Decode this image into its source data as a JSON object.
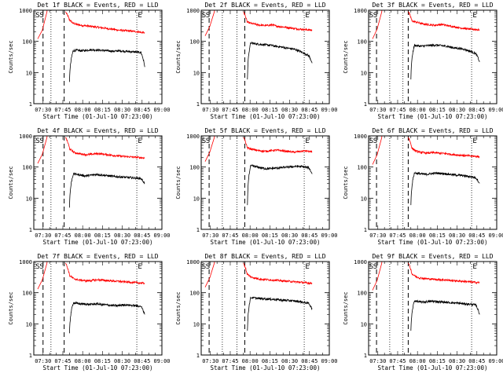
{
  "chart_data": {
    "type": "line",
    "figure_layout": "3x3 grid of detector panels",
    "y_scale": "log",
    "ylim": [
      1,
      1000
    ],
    "xlim": [
      "07:23:00",
      "09:00:00"
    ],
    "xlim_minutes": [
      0,
      97
    ],
    "x_tick_labels": [
      "07:30",
      "07:45",
      "08:00",
      "08:15",
      "08:30",
      "08:45",
      "09:00"
    ],
    "x_tick_minutes": [
      7,
      22,
      37,
      52,
      67,
      82,
      97
    ],
    "y_tick_labels": [
      "1",
      "10",
      "100",
      "1000"
    ],
    "y_tick_values": [
      1,
      10,
      100,
      1000
    ],
    "xlabel": "Start Time (01-Jul-10 07:23:00)",
    "ylabel": "Counts/sec",
    "series_legend": {
      "events_color": "#000000",
      "lld_color": "#ff0000"
    },
    "marker_symbols": {
      "start": "S",
      "end": "E"
    },
    "panels": [
      {
        "title": "Det 1f BLACK = Events, RED = LLD",
        "lld": {
          "t_start": 3,
          "t_end": 10,
          "pre": [
            120,
            230,
            900
          ],
          "rise_at": 24,
          "values": [
            900,
            500,
            380,
            350,
            330,
            320,
            310,
            300,
            290,
            280,
            270,
            260,
            250,
            240,
            230,
            225,
            220,
            215,
            210,
            205,
            195,
            190
          ]
        },
        "events": {
          "t_start": 27,
          "t_end": 84,
          "values": [
            5,
            50,
            52,
            50,
            51,
            53,
            54,
            53,
            52,
            51,
            50,
            49,
            48,
            50,
            49,
            48,
            47,
            46,
            45,
            44,
            15
          ]
        },
        "markers": {
          "S_minute": 5,
          "E_minute": 80,
          "dashed_minutes": [
            7,
            23
          ],
          "dotted_minutes": [
            13,
            78
          ]
        }
      },
      {
        "title": "Det 2f BLACK = Events, RED = LLD",
        "lld": {
          "t_start": 3,
          "t_end": 10,
          "pre": [
            150,
            300,
            900
          ],
          "rise_at": 32,
          "values": [
            900,
            420,
            380,
            360,
            340,
            330,
            320,
            330,
            340,
            310,
            300,
            290,
            280,
            270,
            260,
            250,
            245,
            240,
            235,
            230
          ]
        },
        "events": {
          "t_start": 35,
          "t_end": 84,
          "values": [
            6,
            90,
            85,
            82,
            80,
            78,
            76,
            75,
            70,
            68,
            66,
            62,
            60,
            58,
            55,
            50,
            45,
            40,
            35,
            20
          ]
        },
        "markers": {
          "S_minute": 4,
          "E_minute": 80,
          "dashed_minutes": [
            6,
            33
          ],
          "dotted_minutes": [
            16,
            27,
            78
          ]
        }
      },
      {
        "title": "Det 3f BLACK = Events, RED = LLD",
        "lld": {
          "t_start": 3,
          "t_end": 10,
          "pre": [
            120,
            250,
            900
          ],
          "rise_at": 30,
          "values": [
            900,
            450,
            420,
            390,
            360,
            350,
            340,
            330,
            340,
            350,
            330,
            310,
            300,
            280,
            270,
            260,
            250,
            245,
            240,
            235
          ]
        },
        "events": {
          "t_start": 32,
          "t_end": 84,
          "values": [
            6,
            75,
            72,
            70,
            72,
            74,
            75,
            76,
            74,
            72,
            70,
            65,
            62,
            60,
            58,
            55,
            50,
            45,
            40,
            22
          ]
        },
        "markers": {
          "S_minute": 4,
          "E_minute": 80,
          "dashed_minutes": [
            6,
            30
          ],
          "dotted_minutes": [
            16,
            26,
            78
          ]
        }
      },
      {
        "title": "Det 4f BLACK = Events, RED = LLD",
        "lld": {
          "t_start": 3,
          "t_end": 10,
          "pre": [
            130,
            260,
            900
          ],
          "rise_at": 24,
          "values": [
            900,
            380,
            300,
            270,
            260,
            250,
            255,
            265,
            270,
            260,
            250,
            240,
            230,
            225,
            220,
            215,
            210,
            205,
            200,
            195
          ]
        },
        "events": {
          "t_start": 27,
          "t_end": 84,
          "values": [
            5,
            60,
            58,
            55,
            52,
            54,
            56,
            58,
            56,
            54,
            52,
            50,
            49,
            48,
            47,
            46,
            45,
            44,
            43,
            30
          ]
        },
        "markers": {
          "S_minute": 5,
          "E_minute": 80,
          "dashed_minutes": [
            7,
            23
          ],
          "dotted_minutes": [
            13,
            78
          ]
        }
      },
      {
        "title": "Det 5f BLACK = Events, RED = LLD",
        "lld": {
          "t_start": 3,
          "t_end": 10,
          "pre": [
            150,
            300,
            900
          ],
          "rise_at": 32,
          "values": [
            900,
            420,
            380,
            360,
            340,
            330,
            320,
            330,
            340,
            350,
            340,
            330,
            320,
            310,
            300,
            310,
            320,
            330,
            320,
            300
          ]
        },
        "events": {
          "t_start": 35,
          "t_end": 84,
          "values": [
            6,
            110,
            105,
            100,
            95,
            90,
            88,
            90,
            92,
            94,
            96,
            98,
            100,
            102,
            104,
            105,
            103,
            100,
            95,
            60
          ]
        },
        "markers": {
          "S_minute": 4,
          "E_minute": 80,
          "dashed_minutes": [
            6,
            33
          ],
          "dotted_minutes": [
            16,
            27,
            78
          ]
        }
      },
      {
        "title": "Det 6f BLACK = Events, RED = LLD",
        "lld": {
          "t_start": 3,
          "t_end": 10,
          "pre": [
            120,
            250,
            900
          ],
          "rise_at": 30,
          "values": [
            900,
            400,
            330,
            300,
            290,
            280,
            285,
            290,
            280,
            275,
            270,
            260,
            250,
            245,
            240,
            235,
            230,
            225,
            220,
            215
          ]
        },
        "events": {
          "t_start": 32,
          "t_end": 84,
          "values": [
            6,
            65,
            62,
            60,
            58,
            60,
            62,
            64,
            63,
            62,
            60,
            58,
            56,
            55,
            54,
            52,
            50,
            48,
            45,
            30
          ]
        },
        "markers": {
          "S_minute": 4,
          "E_minute": 80,
          "dashed_minutes": [
            6,
            30
          ],
          "dotted_minutes": [
            16,
            26,
            78
          ]
        }
      },
      {
        "title": "Det 7f BLACK = Events, RED = LLD",
        "lld": {
          "t_start": 3,
          "t_end": 10,
          "pre": [
            130,
            260,
            900
          ],
          "rise_at": 24,
          "values": [
            900,
            350,
            280,
            260,
            250,
            240,
            245,
            255,
            260,
            250,
            245,
            240,
            235,
            230,
            225,
            220,
            215,
            210,
            205,
            200
          ]
        },
        "events": {
          "t_start": 27,
          "t_end": 84,
          "values": [
            5,
            48,
            45,
            44,
            43,
            42,
            43,
            44,
            42,
            41,
            40,
            39,
            38,
            40,
            41,
            40,
            39,
            38,
            37,
            20
          ]
        },
        "markers": {
          "S_minute": 5,
          "E_minute": 80,
          "dashed_minutes": [
            7,
            23
          ],
          "dotted_minutes": [
            13,
            78
          ]
        }
      },
      {
        "title": "Det 8f BLACK = Events, RED = LLD",
        "lld": {
          "t_start": 3,
          "t_end": 10,
          "pre": [
            150,
            300,
            900
          ],
          "rise_at": 32,
          "values": [
            900,
            400,
            320,
            300,
            280,
            270,
            265,
            260,
            255,
            250,
            245,
            240,
            235,
            230,
            225,
            220,
            215,
            210,
            205,
            200
          ]
        },
        "events": {
          "t_start": 35,
          "t_end": 84,
          "values": [
            6,
            70,
            68,
            66,
            65,
            64,
            63,
            62,
            61,
            60,
            58,
            57,
            56,
            55,
            54,
            52,
            50,
            48,
            46,
            30
          ]
        },
        "markers": {
          "S_minute": 4,
          "E_minute": 80,
          "dashed_minutes": [
            6,
            33
          ],
          "dotted_minutes": [
            16,
            27,
            78
          ]
        }
      },
      {
        "title": "Det 9f BLACK = Events, RED = LLD",
        "lld": {
          "t_start": 3,
          "t_end": 10,
          "pre": [
            120,
            250,
            900
          ],
          "rise_at": 30,
          "values": [
            900,
            400,
            330,
            300,
            290,
            280,
            275,
            270,
            265,
            260,
            255,
            250,
            245,
            240,
            235,
            230,
            225,
            220,
            215,
            210
          ]
        },
        "events": {
          "t_start": 32,
          "t_end": 84,
          "values": [
            6,
            55,
            52,
            50,
            51,
            52,
            53,
            52,
            51,
            50,
            49,
            48,
            47,
            46,
            45,
            44,
            43,
            42,
            40,
            20
          ]
        },
        "markers": {
          "S_minute": 4,
          "E_minute": 80,
          "dashed_minutes": [
            6,
            30
          ],
          "dotted_minutes": [
            16,
            26,
            78
          ]
        }
      }
    ]
  }
}
